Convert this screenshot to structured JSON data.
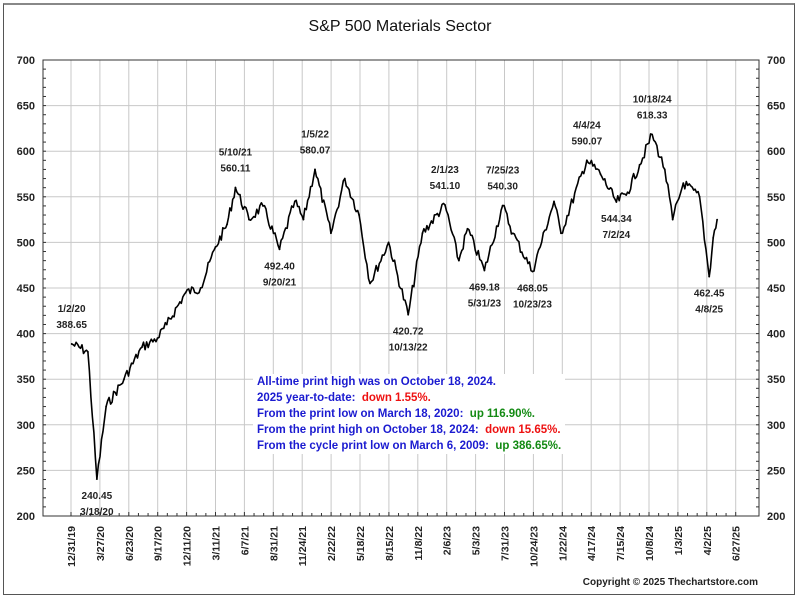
{
  "chart_data": {
    "type": "line",
    "title": "S&P 500 Materials Sector",
    "xlabel": "",
    "ylabel": "",
    "ylim": [
      200,
      700
    ],
    "yticks": [
      200,
      250,
      300,
      350,
      400,
      450,
      500,
      550,
      600,
      650,
      700
    ],
    "ytick_labels": [
      "200",
      "250",
      "300",
      "350",
      "400",
      "450",
      "500",
      "550",
      "600",
      "650",
      "700"
    ],
    "xtick_labels": [
      "12/31/19",
      "3/27/20",
      "6/23/20",
      "9/17/20",
      "12/11/20",
      "3/11/21",
      "6/7/21",
      "8/31/21",
      "11/24/21",
      "2/22/22",
      "5/18/22",
      "8/15/22",
      "11/8/22",
      "2/6/23",
      "5/3/23",
      "7/31/23",
      "10/24/23",
      "1/22/24",
      "4/17/24",
      "7/15/24",
      "10/8/24",
      "1/3/25",
      "4/2/25",
      "6/27/25"
    ],
    "grid": true,
    "legend": "none",
    "series": [
      {
        "name": "S&P 500 Materials Sector",
        "color": "#000000",
        "points": [
          {
            "date": "1/2/20",
            "value": 388.65
          },
          {
            "date": "2/20/20",
            "value": 380
          },
          {
            "date": "3/18/20",
            "value": 240.45
          },
          {
            "date": "4/15/20",
            "value": 320
          },
          {
            "date": "6/8/20",
            "value": 350
          },
          {
            "date": "8/1/20",
            "value": 385
          },
          {
            "date": "9/17/20",
            "value": 395
          },
          {
            "date": "10/15/20",
            "value": 410
          },
          {
            "date": "12/11/20",
            "value": 445
          },
          {
            "date": "1/25/21",
            "value": 450
          },
          {
            "date": "3/11/21",
            "value": 495
          },
          {
            "date": "4/15/21",
            "value": 520
          },
          {
            "date": "5/10/21",
            "value": 560.11
          },
          {
            "date": "6/20/21",
            "value": 525
          },
          {
            "date": "8/1/21",
            "value": 540
          },
          {
            "date": "9/20/21",
            "value": 492.4
          },
          {
            "date": "11/5/21",
            "value": 545
          },
          {
            "date": "12/1/21",
            "value": 525
          },
          {
            "date": "1/5/22",
            "value": 580.07
          },
          {
            "date": "2/22/22",
            "value": 510
          },
          {
            "date": "4/5/22",
            "value": 570
          },
          {
            "date": "5/18/22",
            "value": 530
          },
          {
            "date": "6/20/22",
            "value": 455
          },
          {
            "date": "8/15/22",
            "value": 500
          },
          {
            "date": "10/13/22",
            "value": 420.72
          },
          {
            "date": "11/25/22",
            "value": 510
          },
          {
            "date": "2/1/23",
            "value": 541.1
          },
          {
            "date": "3/15/23",
            "value": 480
          },
          {
            "date": "4/10/23",
            "value": 515
          },
          {
            "date": "5/31/23",
            "value": 469.18
          },
          {
            "date": "7/25/23",
            "value": 540.3
          },
          {
            "date": "8/25/23",
            "value": 510
          },
          {
            "date": "10/23/23",
            "value": 468.05
          },
          {
            "date": "12/27/23",
            "value": 545
          },
          {
            "date": "1/17/24",
            "value": 510
          },
          {
            "date": "4/4/24",
            "value": 590.07
          },
          {
            "date": "5/15/24",
            "value": 575
          },
          {
            "date": "7/2/24",
            "value": 544.34
          },
          {
            "date": "8/5/24",
            "value": 555
          },
          {
            "date": "9/10/24",
            "value": 585
          },
          {
            "date": "10/18/24",
            "value": 618.33
          },
          {
            "date": "11/25/24",
            "value": 580
          },
          {
            "date": "12/19/24",
            "value": 525
          },
          {
            "date": "1/20/25",
            "value": 565
          },
          {
            "date": "3/10/25",
            "value": 550
          },
          {
            "date": "4/8/25",
            "value": 462.45
          },
          {
            "date": "4/20/25",
            "value": 505
          },
          {
            "date": "5/2/25",
            "value": 525
          }
        ]
      }
    ],
    "annotations": [
      {
        "date_label": "1/2/20",
        "value_label": "388.65",
        "date": "1/2/20",
        "value": 388.65,
        "position": "above"
      },
      {
        "date_label": "3/18/20",
        "value_label": "240.45",
        "date": "3/18/20",
        "value": 240.45,
        "position": "below"
      },
      {
        "date_label": "5/10/21",
        "value_label": "560.11",
        "date": "5/10/21",
        "value": 560.11,
        "position": "above"
      },
      {
        "date_label": "9/20/21",
        "value_label": "492.40",
        "date": "9/20/21",
        "value": 492.4,
        "position": "below"
      },
      {
        "date_label": "1/5/22",
        "value_label": "580.07",
        "date": "1/5/22",
        "value": 580.07,
        "position": "above"
      },
      {
        "date_label": "10/13/22",
        "value_label": "420.72",
        "date": "10/13/22",
        "value": 420.72,
        "position": "below"
      },
      {
        "date_label": "2/1/23",
        "value_label": "541.10",
        "date": "2/1/23",
        "value": 541.1,
        "position": "above"
      },
      {
        "date_label": "5/31/23",
        "value_label": "469.18",
        "date": "5/31/23",
        "value": 469.18,
        "position": "below"
      },
      {
        "date_label": "7/25/23",
        "value_label": "540.30",
        "date": "7/25/23",
        "value": 540.3,
        "position": "above"
      },
      {
        "date_label": "10/23/23",
        "value_label": "468.05",
        "date": "10/23/23",
        "value": 468.05,
        "position": "below"
      },
      {
        "date_label": "4/4/24",
        "value_label": "590.07",
        "date": "4/4/24",
        "value": 590.07,
        "position": "above"
      },
      {
        "date_label": "7/2/24",
        "value_label": "544.34",
        "date": "7/2/24",
        "value": 544.34,
        "position": "below"
      },
      {
        "date_label": "10/18/24",
        "value_label": "618.33",
        "date": "10/18/24",
        "value": 618.33,
        "position": "above"
      },
      {
        "date_label": "4/8/25",
        "value_label": "462.45",
        "date": "4/8/25",
        "value": 462.45,
        "position": "below"
      }
    ]
  },
  "info_box": {
    "line1": "All-time print high was on October 18, 2024.",
    "line2_prefix": "2025 year-to-date:",
    "line2_value": "down 1.55%.",
    "line3_prefix": "From the print low on March 18, 2020:",
    "line3_value": "up 116.90%.",
    "line4_prefix": "From the print high on October 18, 2024:",
    "line4_value": "down 15.65%.",
    "line5_prefix": "From the cycle print low on March 6, 2009:",
    "line5_value": "up 386.65%."
  },
  "copyright": "Copyright © 2025 Thechartstore.com"
}
